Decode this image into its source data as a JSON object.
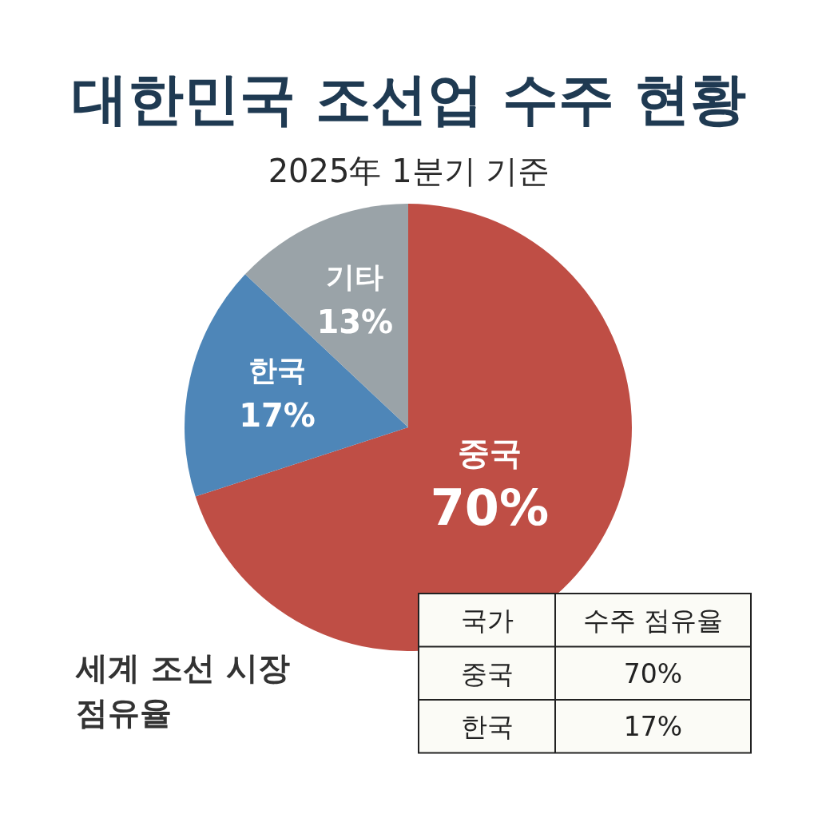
{
  "chart_data": {
    "type": "pie",
    "title": "대한민국 조선업 수주 현황",
    "subtitle": "2025年 1분기 기준",
    "categories": [
      "중국",
      "한국",
      "기타"
    ],
    "values": [
      70,
      17,
      13
    ],
    "colors": [
      "#bf4e45",
      "#4e86b8",
      "#9aa3a8"
    ],
    "value_labels": [
      "70%",
      "17%",
      "13%"
    ],
    "annotations": [
      "세계 조선 시장 점유율",
      "국가",
      "수주 점유율",
      "중국",
      "70%",
      "한국",
      "17%"
    ]
  }
}
